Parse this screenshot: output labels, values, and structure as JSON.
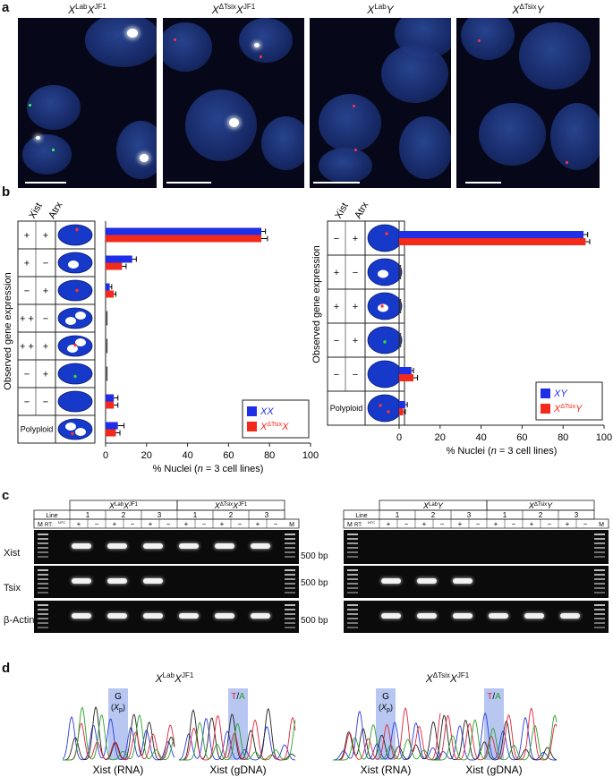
{
  "panel_labels": {
    "a": "a",
    "b": "b",
    "c": "c",
    "d": "d"
  },
  "panel_a": {
    "titles": [
      {
        "main": "X",
        "sup1": "Lab",
        "mid": "X",
        "sup2": "JF1"
      },
      {
        "main": "X",
        "sup1": "ΔTsix",
        "mid": "X",
        "sup2": "JF1"
      },
      {
        "main": "X",
        "sup1": "Lab",
        "mid": "Y",
        "sup2": ""
      },
      {
        "main": "X",
        "sup1": "ΔTsix",
        "mid": "Y",
        "sup2": ""
      }
    ]
  },
  "panel_b": {
    "y_axis_label": "Observed gene expression",
    "col_headers": [
      "Xist",
      "Atrx"
    ],
    "left": {
      "rows": [
        {
          "xist": "+",
          "atrx": "+"
        },
        {
          "xist": "+",
          "atrx": "−"
        },
        {
          "xist": "−",
          "atrx": "+"
        },
        {
          "xist": "+ +",
          "atrx": "−"
        },
        {
          "xist": "+ +",
          "atrx": "+"
        },
        {
          "xist": "−",
          "atrx": "+"
        },
        {
          "xist": "−",
          "atrx": "−"
        },
        {
          "xist": "Polyploid",
          "atrx": ""
        }
      ]
    },
    "right": {
      "rows": [
        {
          "xist": "−",
          "atrx": "+"
        },
        {
          "xist": "+",
          "atrx": "−"
        },
        {
          "xist": "+",
          "atrx": "+"
        },
        {
          "xist": "−",
          "atrx": "+"
        },
        {
          "xist": "−",
          "atrx": "−"
        },
        {
          "xist": "Polyploid",
          "atrx": ""
        }
      ]
    },
    "x_axis_label": "% Nuclei (n = 3 cell lines)",
    "x_label_parts": {
      "a": "% Nuclei (",
      "n": "n",
      "b": " = 3 cell lines)"
    },
    "colors": {
      "blue": "#1f2fe8",
      "red": "#f2291b"
    }
  },
  "chart_data": [
    {
      "type": "bar",
      "orientation": "horizontal",
      "categories": [
        "Xist + / Atrx +",
        "Xist + / Atrx −",
        "Xist − / Atrx +",
        "Xist ++ / Atrx −",
        "Xist ++ / Atrx +",
        "Xist − / Atrx +",
        "Xist − / Atrx −",
        "Polyploid"
      ],
      "series": [
        {
          "name": "XX",
          "values": [
            76,
            13,
            2,
            0,
            0,
            0,
            4,
            6
          ],
          "errors": [
            2,
            2,
            1,
            0,
            0,
            0,
            2,
            3
          ]
        },
        {
          "name": "XΔTsixX",
          "values": [
            76,
            8,
            4,
            0,
            0,
            0,
            4,
            5
          ],
          "errors": [
            3,
            2,
            1,
            0,
            0,
            0,
            2,
            2
          ]
        }
      ],
      "legend": [
        {
          "parts": [
            "XX"
          ]
        },
        {
          "parts": [
            "X",
            "ΔTsix",
            "X"
          ]
        }
      ],
      "xlim": [
        0,
        100
      ],
      "xticks": [
        0,
        20,
        40,
        60,
        80,
        100
      ],
      "legend_position": "bottom-right"
    },
    {
      "type": "bar",
      "orientation": "horizontal",
      "categories": [
        "Xist − / Atrx +",
        "Xist + / Atrx −",
        "Xist + / Atrx +",
        "Xist − / Atrx +",
        "Xist − / Atrx −",
        "Polyploid"
      ],
      "series": [
        {
          "name": "XY",
          "values": [
            90,
            0,
            0,
            0,
            6,
            3
          ],
          "errors": [
            2,
            0,
            0,
            0,
            1,
            1
          ]
        },
        {
          "name": "XΔTsixY",
          "values": [
            91,
            0,
            0,
            0,
            7,
            2
          ],
          "errors": [
            2,
            0,
            0,
            0,
            2,
            1
          ]
        }
      ],
      "legend": [
        {
          "parts": [
            "XY"
          ]
        },
        {
          "parts": [
            "X",
            "ΔTsix",
            "Y"
          ]
        }
      ],
      "xlim": [
        0,
        100
      ],
      "xticks": [
        0,
        20,
        40,
        60,
        80,
        100
      ],
      "legend_position": "bottom-right"
    }
  ],
  "panel_c": {
    "line_label": "Line",
    "m_label": "M",
    "rt_label": "RT:",
    "ntc_label": "NTC",
    "left": {
      "groups": [
        {
          "main": "X",
          "sup1": "Lab",
          "mid": "X",
          "sup2": "JF1"
        },
        {
          "main": "X",
          "sup1": "ΔTsix",
          "mid": "X",
          "sup2": "JF1"
        }
      ],
      "lines": [
        "1",
        "2",
        "3",
        "1",
        "2",
        "3"
      ]
    },
    "right": {
      "groups": [
        {
          "main": "X",
          "sup1": "Lab",
          "mid": "Y",
          "sup2": ""
        },
        {
          "main": "X",
          "sup1": "ΔTsix",
          "mid": "Y",
          "sup2": ""
        }
      ],
      "lines": [
        "1",
        "2",
        "3",
        "1",
        "2",
        "3"
      ]
    },
    "rt_signs": [
      "+",
      "−",
      "+",
      "−",
      "+",
      "−",
      "+",
      "−",
      "+",
      "−",
      "+",
      "−"
    ],
    "rows": [
      {
        "label": "Xist",
        "bp": "500 bp"
      },
      {
        "label": "Tsix",
        "bp": "500 bp"
      },
      {
        "label": "β-Actin",
        "bp": "500 bp"
      }
    ]
  },
  "panel_d": {
    "titles": [
      {
        "main": "X",
        "sup1": "Lab",
        "mid": "X",
        "sup2": "JF1"
      },
      {
        "main": "X",
        "sup1": "ΔTsix",
        "mid": "X",
        "sup2": "JF1"
      }
    ],
    "traces": [
      {
        "label": "Xist (RNA)",
        "base": "G",
        "allele": "X",
        "allele_sub": "p"
      },
      {
        "label": "Xist (gDNA)",
        "base_t": "T",
        "slash": "/",
        "base_a": "A"
      },
      {
        "label": "Xist (RNA)",
        "base": "G",
        "allele": "X",
        "allele_sub": "p"
      },
      {
        "label": "Xist (gDNA)",
        "base_t": "T",
        "slash": "/",
        "base_a": "A"
      }
    ]
  }
}
